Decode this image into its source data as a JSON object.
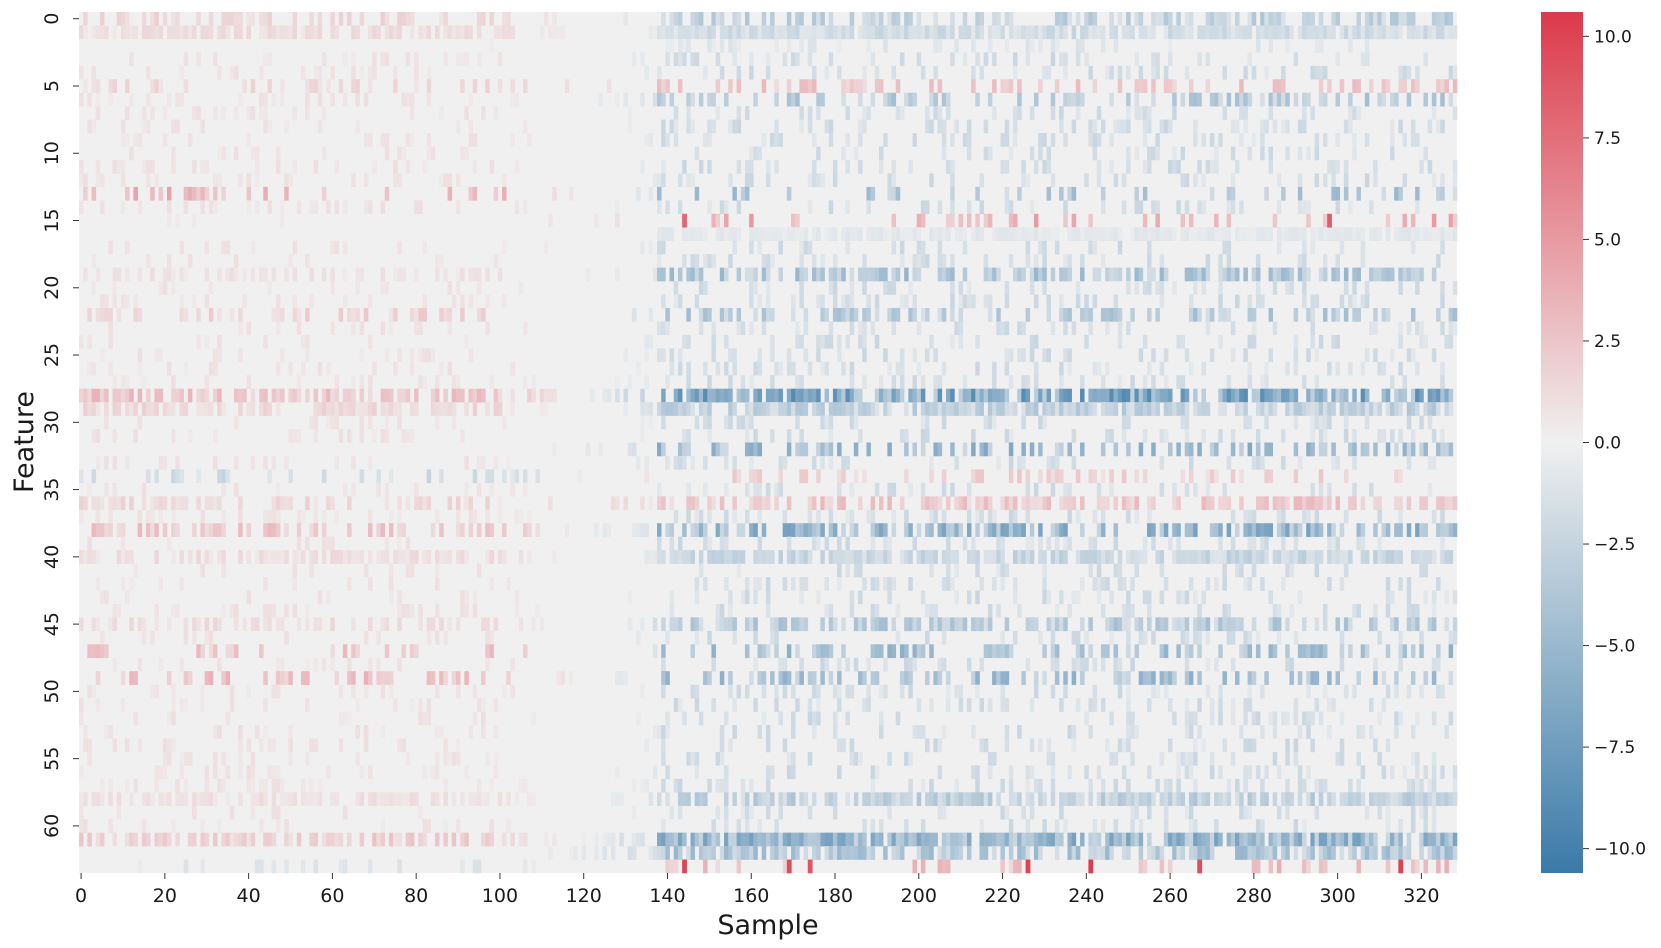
{
  "chart_data": {
    "type": "heatmap",
    "title": "",
    "xlabel": "Sample",
    "ylabel": "Feature",
    "n_samples": 329,
    "n_features": 64,
    "x_ticks": [
      0,
      20,
      40,
      60,
      80,
      100,
      120,
      140,
      160,
      180,
      200,
      220,
      240,
      260,
      280,
      300,
      320
    ],
    "y_ticks": [
      0,
      5,
      10,
      15,
      20,
      25,
      30,
      35,
      40,
      45,
      50,
      55,
      60
    ],
    "colorbar": {
      "range": [
        -10.6,
        10.6
      ],
      "ticks": [
        -10.0,
        -7.5,
        -5.0,
        -2.5,
        0.0,
        2.5,
        5.0,
        7.5,
        10.0
      ],
      "tick_labels": [
        "−10.0",
        "−7.5",
        "−5.0",
        "−2.5",
        "0.0",
        "2.5",
        "5.0",
        "7.5",
        "10.0"
      ],
      "colors": {
        "negative": "#3a7aa8",
        "zero": "#f0f0f0",
        "positive": "#dc3a4a"
      }
    },
    "description_of_values": "Features in rows, samples in columns; left samples (0-80) mostly mildly positive (pink), right samples (140-328) mostly negative (blue), with a few strong positive outliers (~+10) in features 15 and 63.",
    "row_profiles": [
      {
        "feature": 0,
        "left": 1.6,
        "right": -3.0,
        "density": 0.55
      },
      {
        "feature": 1,
        "left": 1.2,
        "right": -2.0,
        "density": 0.9
      },
      {
        "feature": 2,
        "left": 0.3,
        "right": -1.0,
        "density": 0.2
      },
      {
        "feature": 5,
        "left": 1.4,
        "right": 2.5,
        "density": 0.35
      },
      {
        "feature": 6,
        "left": 0.8,
        "right": -3.5,
        "density": 0.4
      },
      {
        "feature": 13,
        "left": 3.5,
        "right": -4.0,
        "density": 0.25
      },
      {
        "feature": 15,
        "left": 0.3,
        "right": 4.0,
        "density": 0.15
      },
      {
        "feature": 16,
        "left": 0.2,
        "right": -0.8,
        "density": 0.9
      },
      {
        "feature": 19,
        "left": 0.9,
        "right": -4.0,
        "density": 0.55
      },
      {
        "feature": 22,
        "left": 1.8,
        "right": -3.5,
        "density": 0.45
      },
      {
        "feature": 28,
        "left": 2.8,
        "right": -7.0,
        "density": 0.8
      },
      {
        "feature": 29,
        "left": 1.5,
        "right": -3.0,
        "density": 0.8
      },
      {
        "feature": 32,
        "left": 0.2,
        "right": -5.0,
        "density": 0.4
      },
      {
        "feature": 34,
        "left": -2.0,
        "right": 2.0,
        "density": 0.3
      },
      {
        "feature": 36,
        "left": 1.5,
        "right": 2.5,
        "density": 0.55
      },
      {
        "feature": 38,
        "left": 2.5,
        "right": -5.5,
        "density": 0.6
      },
      {
        "feature": 40,
        "left": 1.2,
        "right": -2.5,
        "density": 0.8
      },
      {
        "feature": 45,
        "left": 1.2,
        "right": -3.5,
        "density": 0.6
      },
      {
        "feature": 47,
        "left": 2.5,
        "right": -4.5,
        "density": 0.35
      },
      {
        "feature": 49,
        "left": 3.0,
        "right": -4.5,
        "density": 0.4
      },
      {
        "feature": 58,
        "left": 1.0,
        "right": -3.0,
        "density": 0.75
      },
      {
        "feature": 61,
        "left": 2.0,
        "right": -5.5,
        "density": 0.85
      },
      {
        "feature": 62,
        "left": 0.2,
        "right": -4.0,
        "density": 0.7
      },
      {
        "feature": 63,
        "left": -1.0,
        "right": 3.0,
        "density": 0.2
      }
    ],
    "strong_positive_cells": [
      {
        "sample": 144,
        "feature": 15,
        "value": 8.0
      },
      {
        "sample": 298,
        "feature": 15,
        "value": 8.5
      },
      {
        "sample": 144,
        "feature": 63,
        "value": 10.0
      },
      {
        "sample": 169,
        "feature": 63,
        "value": 9.5
      },
      {
        "sample": 174,
        "feature": 63,
        "value": 9.0
      },
      {
        "sample": 226,
        "feature": 63,
        "value": 10.0
      },
      {
        "sample": 241,
        "feature": 63,
        "value": 10.5
      },
      {
        "sample": 267,
        "feature": 63,
        "value": 9.5
      },
      {
        "sample": 315,
        "feature": 63,
        "value": 10.0
      }
    ]
  }
}
